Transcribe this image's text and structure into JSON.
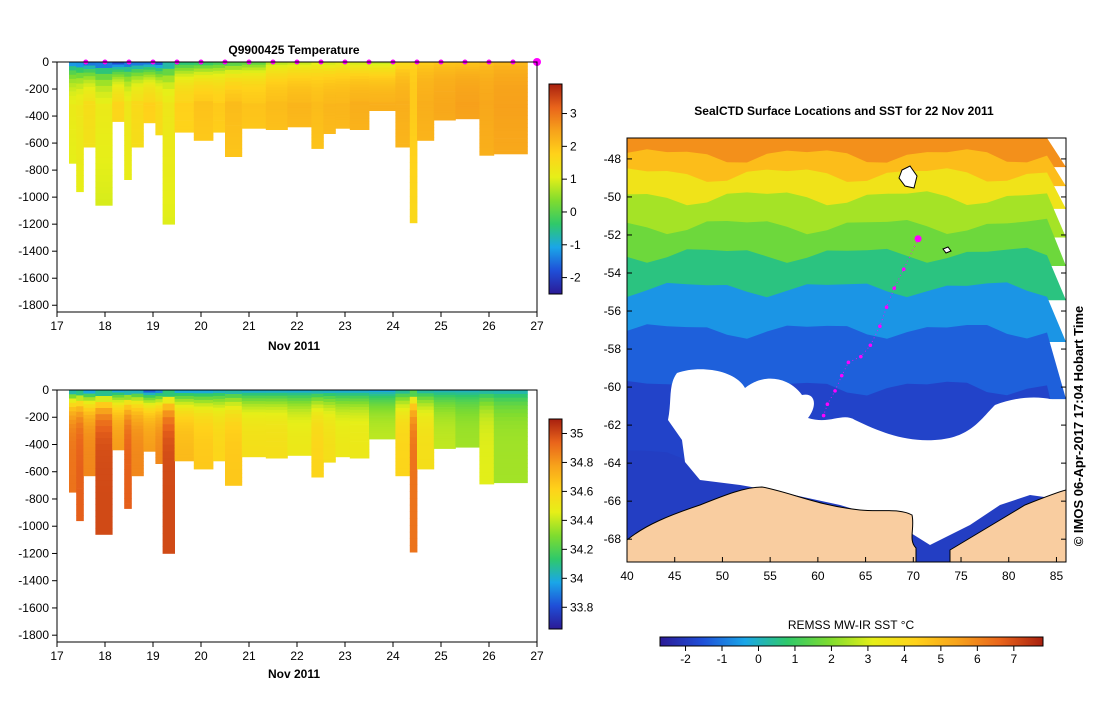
{
  "chart_data": [
    {
      "type": "heatmap",
      "title": "Q9900425  Temperature",
      "xlabel": "Nov 2011",
      "ylabel": "",
      "xlim": [
        17,
        27
      ],
      "ylim": [
        -1850,
        0
      ],
      "xticks": [
        17,
        18,
        19,
        20,
        21,
        22,
        23,
        24,
        25,
        26,
        27
      ],
      "yticks": [
        0,
        -200,
        -400,
        -600,
        -800,
        -1000,
        -1200,
        -1400,
        -1600,
        -1800
      ],
      "colorbar": {
        "min": -2.5,
        "max": 3.9,
        "ticks": [
          3,
          2,
          1,
          0,
          -1,
          -2
        ],
        "stops": [
          "#2b1a96",
          "#1f4fd8",
          "#1aa6e8",
          "#2fc96a",
          "#7fdc2f",
          "#e6ef18",
          "#ffd21a",
          "#f7a21b",
          "#e9641b",
          "#a8200f"
        ]
      },
      "profile_times": [
        17.6,
        18.0,
        18.5,
        19.0,
        19.5,
        20.0,
        20.5,
        21.0,
        21.5,
        22.0,
        22.5,
        23.0,
        23.5,
        24.0,
        24.5,
        25.0,
        25.5,
        26.0,
        26.5,
        27.0
      ],
      "profiles": [
        {
          "start": 17.25,
          "end": 17.4,
          "maxdepth": 750,
          "surface": -1.6,
          "deep": 1.2
        },
        {
          "start": 17.4,
          "end": 17.55,
          "maxdepth": 960,
          "surface": -1.8,
          "deep": 1.3
        },
        {
          "start": 17.55,
          "end": 17.8,
          "maxdepth": 630,
          "surface": -1.9,
          "deep": 1.5
        },
        {
          "start": 17.8,
          "end": 18.15,
          "maxdepth": 1060,
          "surface": -2.1,
          "deep": 1.2
        },
        {
          "start": 18.15,
          "end": 18.4,
          "maxdepth": 440,
          "surface": -2.2,
          "deep": 1.7
        },
        {
          "start": 18.4,
          "end": 18.55,
          "maxdepth": 870,
          "surface": -2.0,
          "deep": 1.3
        },
        {
          "start": 18.55,
          "end": 18.8,
          "maxdepth": 630,
          "surface": -1.9,
          "deep": 1.6
        },
        {
          "start": 18.8,
          "end": 19.05,
          "maxdepth": 450,
          "surface": -1.8,
          "deep": 1.8
        },
        {
          "start": 19.05,
          "end": 19.2,
          "maxdepth": 540,
          "surface": -2.1,
          "deep": 1.6
        },
        {
          "start": 19.2,
          "end": 19.45,
          "maxdepth": 1200,
          "surface": -1.3,
          "deep": 1.3
        },
        {
          "start": 19.45,
          "end": 19.85,
          "maxdepth": 520,
          "surface": -0.7,
          "deep": 1.8
        },
        {
          "start": 19.85,
          "end": 20.25,
          "maxdepth": 580,
          "surface": -0.6,
          "deep": 2.0
        },
        {
          "start": 20.25,
          "end": 20.5,
          "maxdepth": 520,
          "surface": -0.4,
          "deep": 1.9
        },
        {
          "start": 20.5,
          "end": 20.85,
          "maxdepth": 700,
          "surface": -0.3,
          "deep": 2.1
        },
        {
          "start": 20.85,
          "end": 21.35,
          "maxdepth": 490,
          "surface": -0.1,
          "deep": 2.0
        },
        {
          "start": 21.35,
          "end": 21.8,
          "maxdepth": 500,
          "surface": 0.6,
          "deep": 2.1
        },
        {
          "start": 21.8,
          "end": 22.3,
          "maxdepth": 480,
          "surface": 0.7,
          "deep": 2.2
        },
        {
          "start": 22.3,
          "end": 22.55,
          "maxdepth": 640,
          "surface": 0.9,
          "deep": 2.1
        },
        {
          "start": 22.55,
          "end": 22.8,
          "maxdepth": 530,
          "surface": 0.8,
          "deep": 2.2
        },
        {
          "start": 22.8,
          "end": 23.1,
          "maxdepth": 490,
          "surface": 0.9,
          "deep": 2.2
        },
        {
          "start": 23.1,
          "end": 23.5,
          "maxdepth": 500,
          "surface": 0.8,
          "deep": 2.3
        },
        {
          "start": 23.5,
          "end": 24.05,
          "maxdepth": 360,
          "surface": 0.7,
          "deep": 2.3
        },
        {
          "start": 24.05,
          "end": 24.35,
          "maxdepth": 630,
          "surface": 1.5,
          "deep": 2.3
        },
        {
          "start": 24.35,
          "end": 24.5,
          "maxdepth": 1190,
          "surface": 1.7,
          "deep": 1.9
        },
        {
          "start": 24.5,
          "end": 24.85,
          "maxdepth": 580,
          "surface": 1.8,
          "deep": 2.3
        },
        {
          "start": 24.85,
          "end": 25.3,
          "maxdepth": 430,
          "surface": 1.9,
          "deep": 2.4
        },
        {
          "start": 25.3,
          "end": 25.8,
          "maxdepth": 420,
          "surface": 1.9,
          "deep": 2.5
        },
        {
          "start": 25.8,
          "end": 26.1,
          "maxdepth": 690,
          "surface": 2.0,
          "deep": 2.4
        },
        {
          "start": 26.1,
          "end": 26.8,
          "maxdepth": 680,
          "surface": 2.1,
          "deep": 2.5
        }
      ]
    },
    {
      "type": "heatmap",
      "title": "",
      "xlabel": "Nov 2011",
      "ylabel": "",
      "xlim": [
        17,
        27
      ],
      "ylim": [
        -1850,
        0
      ],
      "xticks": [
        17,
        18,
        19,
        20,
        21,
        22,
        23,
        24,
        25,
        26,
        27
      ],
      "yticks": [
        0,
        -200,
        -400,
        -600,
        -800,
        -1000,
        -1200,
        -1400,
        -1600,
        -1800
      ],
      "colorbar": {
        "min": 33.65,
        "max": 35.1,
        "ticks": [
          "35",
          "34.8",
          "34.6",
          "34.4",
          "34.2",
          "34",
          "33.8"
        ],
        "stops": [
          "#2b1a96",
          "#1f4fd8",
          "#1aa6e8",
          "#2fc96a",
          "#7fdc2f",
          "#e6ef18",
          "#ffd21a",
          "#f7a21b",
          "#e9641b",
          "#a8200f"
        ]
      },
      "profiles": [
        {
          "start": 17.25,
          "end": 17.4,
          "maxdepth": 750,
          "surface": 33.9,
          "deep": 34.9
        },
        {
          "start": 17.4,
          "end": 17.55,
          "maxdepth": 960,
          "surface": 33.9,
          "deep": 34.95
        },
        {
          "start": 17.55,
          "end": 17.8,
          "maxdepth": 630,
          "surface": 33.85,
          "deep": 34.85
        },
        {
          "start": 17.8,
          "end": 18.15,
          "maxdepth": 1060,
          "surface": 33.85,
          "deep": 35.0
        },
        {
          "start": 18.15,
          "end": 18.4,
          "maxdepth": 440,
          "surface": 33.9,
          "deep": 34.8
        },
        {
          "start": 18.4,
          "end": 18.55,
          "maxdepth": 870,
          "surface": 33.85,
          "deep": 34.95
        },
        {
          "start": 18.55,
          "end": 18.8,
          "maxdepth": 630,
          "surface": 33.9,
          "deep": 34.85
        },
        {
          "start": 18.8,
          "end": 19.05,
          "maxdepth": 450,
          "surface": 33.75,
          "deep": 34.8
        },
        {
          "start": 19.05,
          "end": 19.2,
          "maxdepth": 540,
          "surface": 33.8,
          "deep": 34.85
        },
        {
          "start": 19.2,
          "end": 19.45,
          "maxdepth": 1200,
          "surface": 33.85,
          "deep": 35.0
        },
        {
          "start": 19.45,
          "end": 19.85,
          "maxdepth": 520,
          "surface": 33.9,
          "deep": 34.7
        },
        {
          "start": 19.85,
          "end": 20.25,
          "maxdepth": 580,
          "surface": 33.9,
          "deep": 34.65
        },
        {
          "start": 20.25,
          "end": 20.5,
          "maxdepth": 520,
          "surface": 33.95,
          "deep": 34.6
        },
        {
          "start": 20.5,
          "end": 20.85,
          "maxdepth": 700,
          "surface": 33.95,
          "deep": 34.65
        },
        {
          "start": 20.85,
          "end": 21.35,
          "maxdepth": 490,
          "surface": 33.95,
          "deep": 34.55
        },
        {
          "start": 21.35,
          "end": 21.8,
          "maxdepth": 500,
          "surface": 33.95,
          "deep": 34.55
        },
        {
          "start": 21.8,
          "end": 22.3,
          "maxdepth": 480,
          "surface": 33.95,
          "deep": 34.5
        },
        {
          "start": 22.3,
          "end": 22.55,
          "maxdepth": 640,
          "surface": 33.95,
          "deep": 34.6
        },
        {
          "start": 22.55,
          "end": 22.8,
          "maxdepth": 530,
          "surface": 33.95,
          "deep": 34.55
        },
        {
          "start": 22.8,
          "end": 23.1,
          "maxdepth": 490,
          "surface": 33.95,
          "deep": 34.5
        },
        {
          "start": 23.1,
          "end": 23.5,
          "maxdepth": 500,
          "surface": 33.95,
          "deep": 34.5
        },
        {
          "start": 23.5,
          "end": 24.05,
          "maxdepth": 360,
          "surface": 33.95,
          "deep": 34.4
        },
        {
          "start": 24.05,
          "end": 24.35,
          "maxdepth": 630,
          "surface": 34.0,
          "deep": 34.6
        },
        {
          "start": 24.35,
          "end": 24.5,
          "maxdepth": 1190,
          "surface": 34.0,
          "deep": 34.9
        },
        {
          "start": 24.5,
          "end": 24.85,
          "maxdepth": 580,
          "surface": 34.0,
          "deep": 34.55
        },
        {
          "start": 24.85,
          "end": 25.3,
          "maxdepth": 430,
          "surface": 34.0,
          "deep": 34.4
        },
        {
          "start": 25.3,
          "end": 25.8,
          "maxdepth": 420,
          "surface": 34.0,
          "deep": 34.35
        },
        {
          "start": 25.8,
          "end": 26.1,
          "maxdepth": 690,
          "surface": 34.0,
          "deep": 34.45
        },
        {
          "start": 26.1,
          "end": 26.8,
          "maxdepth": 680,
          "surface": 34.0,
          "deep": 34.35
        }
      ]
    },
    {
      "type": "heatmap",
      "title": "SealCTD Surface Locations and SST for 22 Nov 2011",
      "xlim": [
        40,
        86
      ],
      "ylim": [
        -69.2,
        -46.9
      ],
      "xticks": [
        40,
        45,
        50,
        55,
        60,
        65,
        70,
        75,
        80,
        85
      ],
      "yticks": [
        -48,
        -50,
        -52,
        -54,
        -56,
        -58,
        -60,
        -62,
        -64,
        -66,
        -68
      ],
      "colorbar": {
        "label": "REMSS MW-IR SST °C",
        "min": -2.7,
        "max": 7.8,
        "ticks": [
          "-2",
          "-1",
          "0",
          "1",
          "2",
          "3",
          "4",
          "5",
          "6",
          "7"
        ],
        "stops": [
          "#2b1a96",
          "#1f4fd8",
          "#1aa6e8",
          "#2fc96a",
          "#7fdc2f",
          "#e6ef18",
          "#ffd21a",
          "#f7a21b",
          "#e9641b",
          "#a8200f"
        ]
      },
      "sst_bands": [
        {
          "lat_north": -46.9,
          "lat_south": -47.8,
          "sst": 5.8
        },
        {
          "lat_north": -47.8,
          "lat_south": -48.8,
          "sst": 4.8
        },
        {
          "lat_north": -48.8,
          "lat_south": -50.0,
          "sst": 3.6
        },
        {
          "lat_north": -50.0,
          "lat_south": -51.5,
          "sst": 2.4
        },
        {
          "lat_north": -51.5,
          "lat_south": -53.0,
          "sst": 1.7
        },
        {
          "lat_north": -53.0,
          "lat_south": -54.8,
          "sst": 0.6
        },
        {
          "lat_north": -54.8,
          "lat_south": -57.0,
          "sst": -0.6
        },
        {
          "lat_north": -57.0,
          "lat_south": -60.0,
          "sst": -1.3
        },
        {
          "lat_north": -60.0,
          "lat_south": -63.5,
          "sst": -1.8
        },
        {
          "lat_north": -63.5,
          "lat_south": -69.2,
          "sst": -1.9
        }
      ],
      "track": [
        {
          "lon": 70.5,
          "lat": -52.2
        },
        {
          "lon": 69.0,
          "lat": -53.8
        },
        {
          "lon": 68.0,
          "lat": -54.8
        },
        {
          "lon": 67.2,
          "lat": -55.8
        },
        {
          "lon": 66.5,
          "lat": -56.8
        },
        {
          "lon": 65.5,
          "lat": -57.8
        },
        {
          "lon": 64.5,
          "lat": -58.4
        },
        {
          "lon": 63.2,
          "lat": -58.7
        },
        {
          "lon": 62.5,
          "lat": -59.4
        },
        {
          "lon": 61.8,
          "lat": -60.2
        },
        {
          "lon": 61.0,
          "lat": -60.9
        },
        {
          "lon": 60.6,
          "lat": -61.5
        }
      ],
      "current_location": {
        "lon": 70.5,
        "lat": -52.2
      }
    }
  ],
  "credit_text": "©  IMOS 06-Apr-2017 17:04 Hobart Time",
  "colors": {
    "land": "#f9cda0",
    "ice": "#ffffff",
    "track": "#ff00ff",
    "frame": "#000000"
  }
}
